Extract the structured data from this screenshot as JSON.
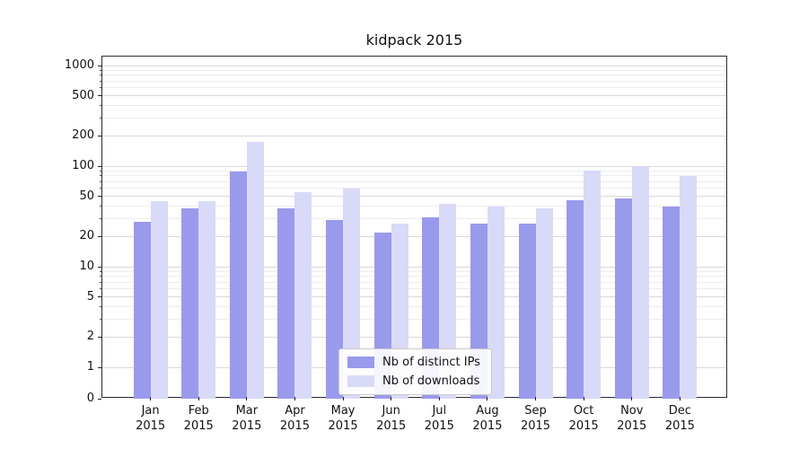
{
  "chart_data": {
    "type": "bar",
    "title": "kidpack 2015",
    "x_year": "2015",
    "categories": [
      "Jan",
      "Feb",
      "Mar",
      "Apr",
      "May",
      "Jun",
      "Jul",
      "Aug",
      "Sep",
      "Oct",
      "Nov",
      "Dec"
    ],
    "series": [
      {
        "name": "Nb of distinct IPs",
        "color": "#9a9aec",
        "values": [
          28,
          38,
          88,
          38,
          29,
          22,
          31,
          27,
          27,
          46,
          48,
          40
        ]
      },
      {
        "name": "Nb of downloads",
        "color": "#d9d9f8",
        "values": [
          45,
          45,
          175,
          55,
          60,
          27,
          42,
          40,
          38,
          90,
          100,
          80
        ]
      }
    ],
    "yscale": "symlog",
    "yticks": [
      0,
      1,
      2,
      5,
      10,
      20,
      50,
      100,
      200,
      500,
      1000
    ],
    "ylim": [
      0,
      1200
    ],
    "grid": true,
    "legend_position": "lower center"
  }
}
